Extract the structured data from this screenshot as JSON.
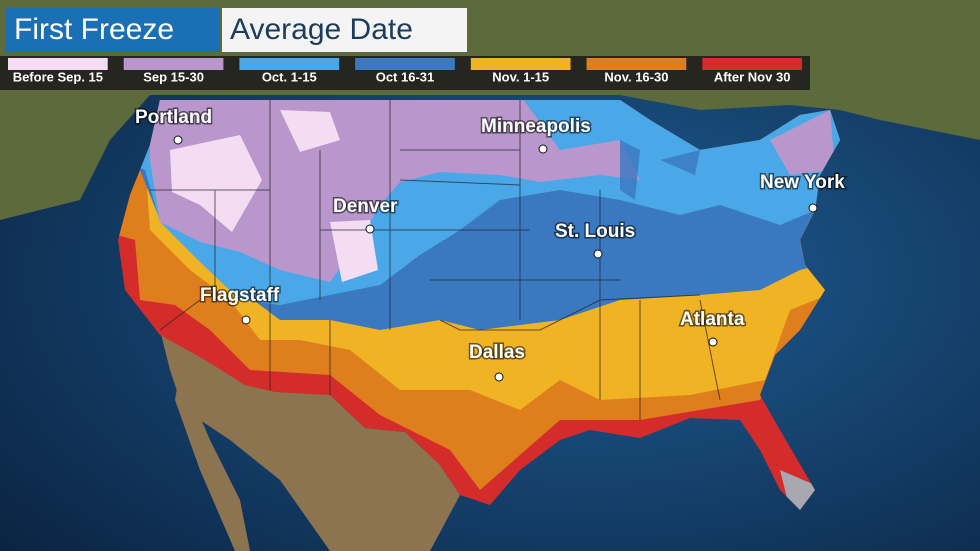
{
  "header": {
    "title": "First Freeze",
    "subtitle": "Average Date"
  },
  "legend": [
    {
      "label": "Before Sep. 15",
      "color": "#f4dcf3"
    },
    {
      "label": "Sep 15-30",
      "color": "#b996cc"
    },
    {
      "label": "Oct. 1-15",
      "color": "#4ba8e8"
    },
    {
      "label": "Oct 16-31",
      "color": "#3a78c0"
    },
    {
      "label": "Nov. 1-15",
      "color": "#f0b324"
    },
    {
      "label": "Nov. 16-30",
      "color": "#de7e1d"
    },
    {
      "label": "After Nov 30",
      "color": "#d42b2b"
    }
  ],
  "cities": [
    {
      "label": "Portland"
    },
    {
      "label": "Minneapolis"
    },
    {
      "label": "New York"
    },
    {
      "label": "Denver"
    },
    {
      "label": "St. Louis"
    },
    {
      "label": "Flagstaff"
    },
    {
      "label": "Atlanta"
    },
    {
      "label": "Dallas"
    }
  ]
}
